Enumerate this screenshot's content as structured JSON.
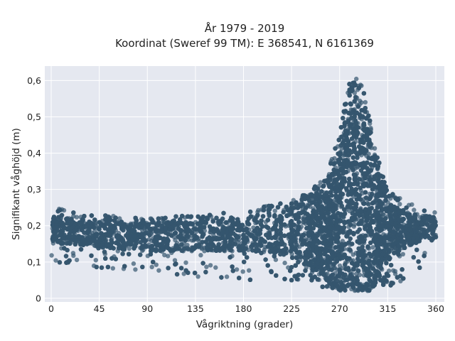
{
  "chart_data": {
    "type": "scatter",
    "title_line1": "År 1979 - 2019",
    "title_line2": "Koordinat (Sweref 99 TM): E 368541, N 6161369",
    "xlabel": "Vågriktning (grader)",
    "ylabel": "Signifikant våghöjd (m)",
    "xlim": [
      -6,
      368
    ],
    "ylim": [
      -0.01,
      0.64
    ],
    "x_ticks": [
      0,
      45,
      90,
      135,
      180,
      225,
      270,
      315,
      360
    ],
    "x_tick_labels": [
      "0",
      "45",
      "90",
      "135",
      "180",
      "225",
      "270",
      "315",
      "360"
    ],
    "y_ticks": [
      0,
      0.1,
      0.2,
      0.3,
      0.4,
      0.5,
      0.6
    ],
    "y_tick_labels": [
      "0",
      "0,1",
      "0,2",
      "0,3",
      "0,4",
      "0,5",
      "0,6"
    ],
    "grid": true,
    "legend": "none",
    "colors": {
      "marker": "#34566e",
      "plot_bg": "#e5e8f0",
      "grid": "#ffffff"
    },
    "envelope": {
      "x": [
        0,
        20,
        45,
        90,
        135,
        180,
        210,
        225,
        240,
        255,
        262,
        270,
        275,
        280,
        285,
        290,
        295,
        300,
        305,
        310,
        315,
        320,
        330,
        340,
        350,
        360
      ],
      "y_upper": [
        0.25,
        0.24,
        0.23,
        0.22,
        0.23,
        0.24,
        0.26,
        0.27,
        0.29,
        0.33,
        0.38,
        0.45,
        0.55,
        0.6,
        0.61,
        0.59,
        0.55,
        0.46,
        0.4,
        0.35,
        0.31,
        0.29,
        0.27,
        0.26,
        0.26,
        0.25
      ],
      "y_lower": [
        0.1,
        0.09,
        0.08,
        0.07,
        0.06,
        0.05,
        0.05,
        0.05,
        0.04,
        0.03,
        0.03,
        0.02,
        0.02,
        0.02,
        0.02,
        0.02,
        0.02,
        0.02,
        0.03,
        0.03,
        0.03,
        0.04,
        0.05,
        0.05,
        0.06,
        0.06
      ],
      "y_dense_upper": [
        0.23,
        0.22,
        0.21,
        0.21,
        0.21,
        0.22,
        0.24,
        0.25,
        0.27,
        0.3,
        0.34,
        0.4,
        0.48,
        0.53,
        0.55,
        0.53,
        0.49,
        0.42,
        0.35,
        0.3,
        0.27,
        0.26,
        0.24,
        0.23,
        0.23,
        0.22
      ],
      "y_dense_lower": [
        0.15,
        0.15,
        0.14,
        0.13,
        0.13,
        0.13,
        0.12,
        0.11,
        0.09,
        0.06,
        0.05,
        0.04,
        0.04,
        0.04,
        0.04,
        0.04,
        0.04,
        0.05,
        0.06,
        0.08,
        0.1,
        0.12,
        0.14,
        0.15,
        0.16,
        0.16
      ]
    },
    "n_points": 9000
  }
}
